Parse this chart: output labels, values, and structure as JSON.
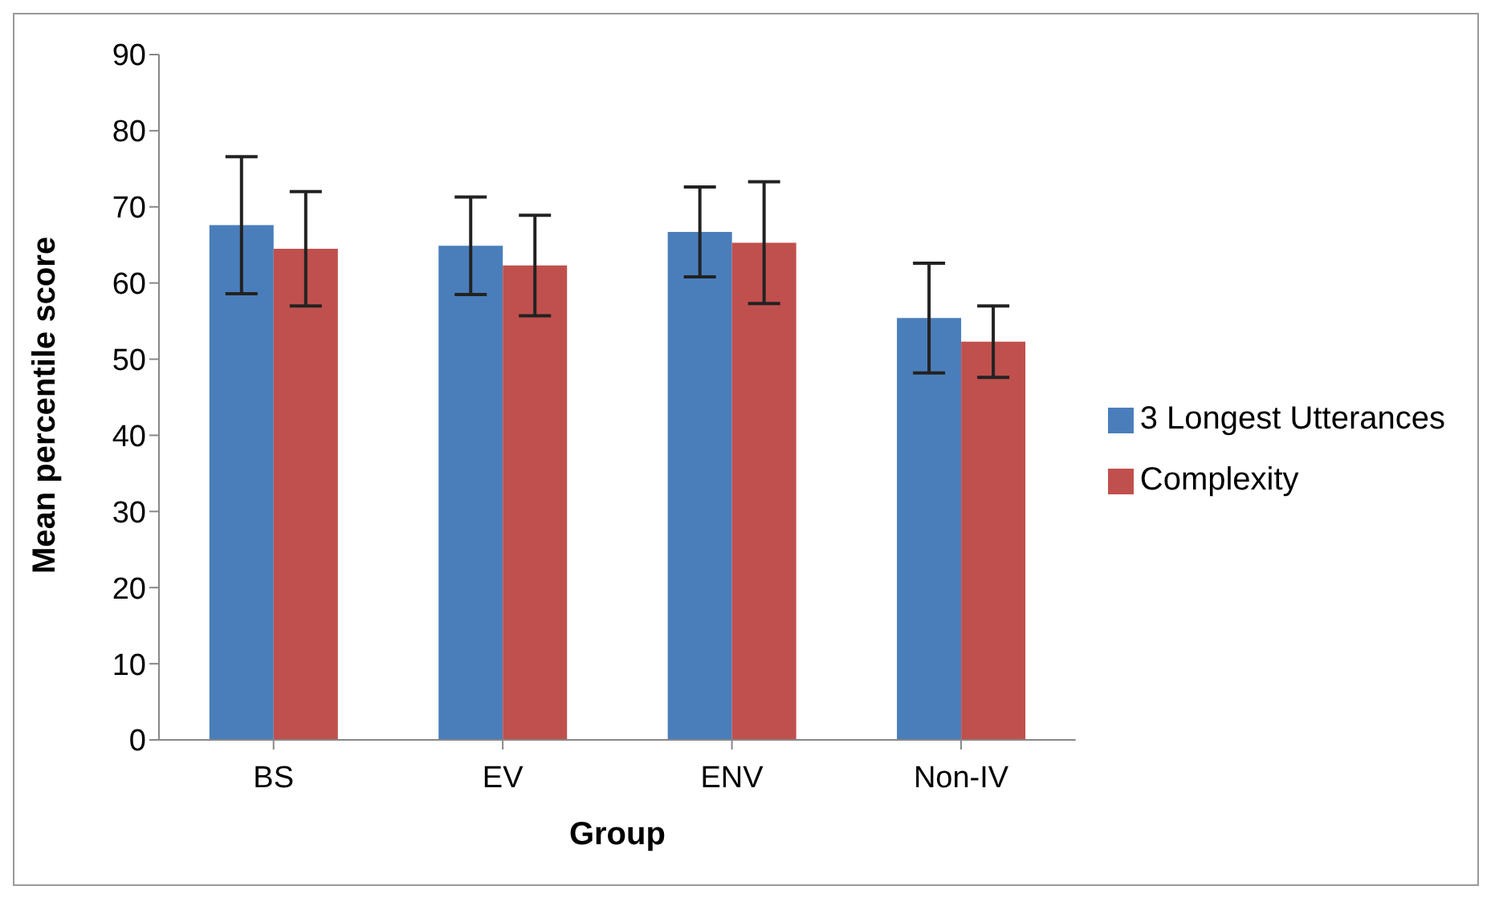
{
  "chart_data": {
    "type": "bar",
    "xlabel": "Group",
    "ylabel": "Mean percentile score",
    "categories": [
      "BS",
      "EV",
      "ENV",
      "Non-IV"
    ],
    "series": [
      {
        "name": "3 Longest Utterances",
        "color": "#4a7ebb",
        "values": [
          67.6,
          64.9,
          66.7,
          55.4
        ],
        "errors": [
          9,
          6.4,
          5.9,
          7.2
        ]
      },
      {
        "name": "Complexity",
        "color": "#c0504d",
        "values": [
          64.5,
          62.3,
          65.3,
          52.3
        ],
        "errors": [
          7.5,
          6.6,
          8,
          4.7
        ]
      }
    ],
    "ylim": [
      0,
      90
    ],
    "yticks": [
      0,
      10,
      20,
      30,
      40,
      50,
      60,
      70,
      80,
      90
    ],
    "grid": false,
    "legend": "right"
  }
}
